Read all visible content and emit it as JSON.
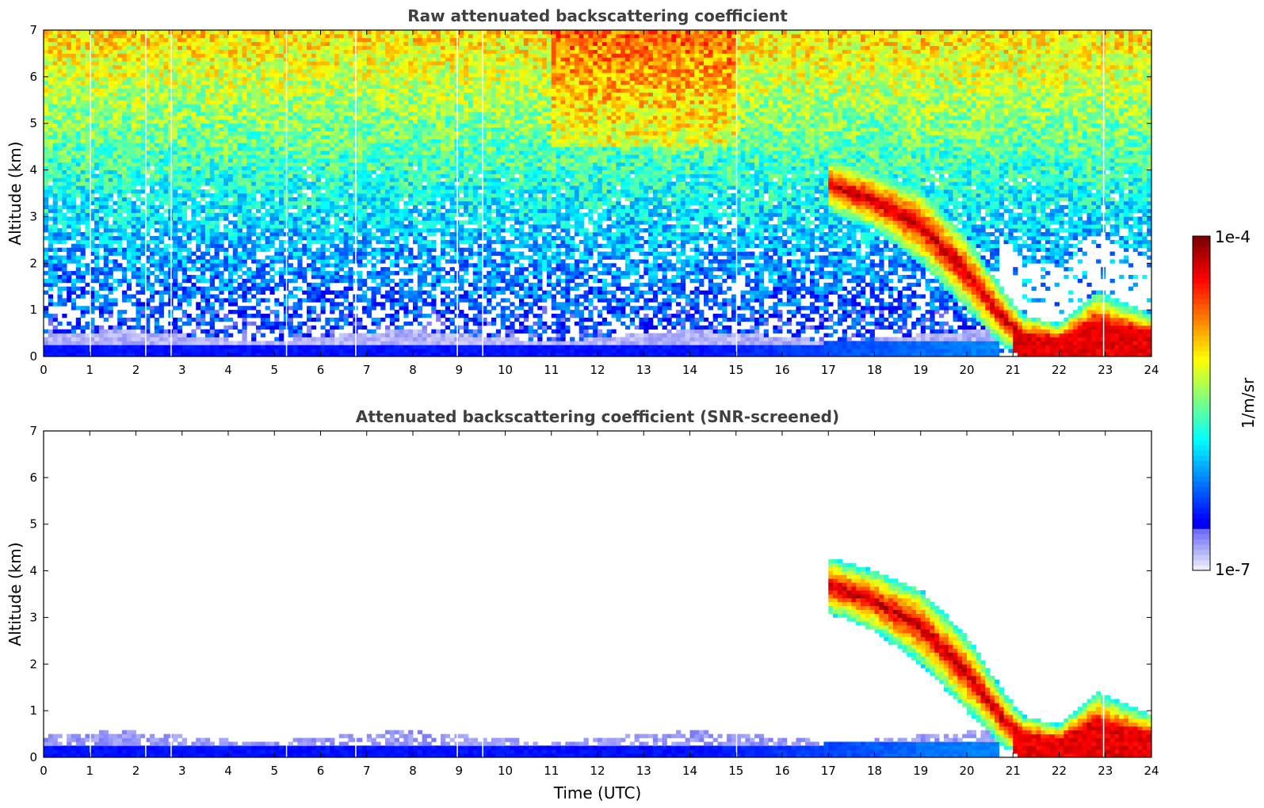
{
  "chart_data": [
    {
      "type": "heatmap",
      "title": "Raw attenuated backscattering coefficient",
      "xlabel": "",
      "ylabel": "Altitude (km)",
      "xlim": [
        0,
        24
      ],
      "ylim": [
        0,
        7
      ],
      "x_ticks": [
        "0",
        "1",
        "2",
        "3",
        "4",
        "5",
        "6",
        "7",
        "8",
        "9",
        "10",
        "11",
        "12",
        "13",
        "14",
        "15",
        "16",
        "17",
        "18",
        "19",
        "20",
        "21",
        "22",
        "23",
        "24"
      ],
      "y_ticks": [
        "0",
        "1",
        "2",
        "3",
        "4",
        "5",
        "6",
        "7"
      ],
      "screened": false
    },
    {
      "type": "heatmap",
      "title": "Attenuated backscattering coefficient (SNR-screened)",
      "xlabel": "Time (UTC)",
      "ylabel": "Altitude (km)",
      "xlim": [
        0,
        24
      ],
      "ylim": [
        0,
        7
      ],
      "x_ticks": [
        "0",
        "1",
        "2",
        "3",
        "4",
        "5",
        "6",
        "7",
        "8",
        "9",
        "10",
        "11",
        "12",
        "13",
        "14",
        "15",
        "16",
        "17",
        "18",
        "19",
        "20",
        "21",
        "22",
        "23",
        "24"
      ],
      "y_ticks": [
        "0",
        "1",
        "2",
        "3",
        "4",
        "5",
        "6",
        "7"
      ],
      "screened": true
    }
  ],
  "colorbar": {
    "label": "1/m/sr",
    "max_label": "1e-4",
    "min_label": "1e-7",
    "scale": "log",
    "colormap": "jet",
    "colors": [
      "#e8e8f8",
      "#0000ff",
      "#00c8ff",
      "#40ff90",
      "#ffff00",
      "#ff8000",
      "#ff0000",
      "#800000"
    ]
  },
  "features": {
    "boundary_layer_top_km": 0.45,
    "data_gap_hours": [
      1.0,
      2.2,
      2.75,
      5.25,
      6.75,
      8.95,
      9.5,
      15.0,
      22.95
    ],
    "descending_cloud": [
      {
        "t": 17.0,
        "top": 4.3,
        "base": 3.1
      },
      {
        "t": 18.0,
        "top": 4.0,
        "base": 2.7
      },
      {
        "t": 19.0,
        "top": 3.6,
        "base": 2.0
      },
      {
        "t": 20.0,
        "top": 2.6,
        "base": 1.0
      },
      {
        "t": 20.8,
        "top": 1.4,
        "base": 0.2
      },
      {
        "t": 21.2,
        "top": 0.9,
        "base": 0.0
      },
      {
        "t": 22.0,
        "top": 0.7,
        "base": 0.0
      },
      {
        "t": 22.8,
        "top": 1.4,
        "base": 0.0
      },
      {
        "t": 24.0,
        "top": 0.9,
        "base": 0.0
      }
    ]
  }
}
